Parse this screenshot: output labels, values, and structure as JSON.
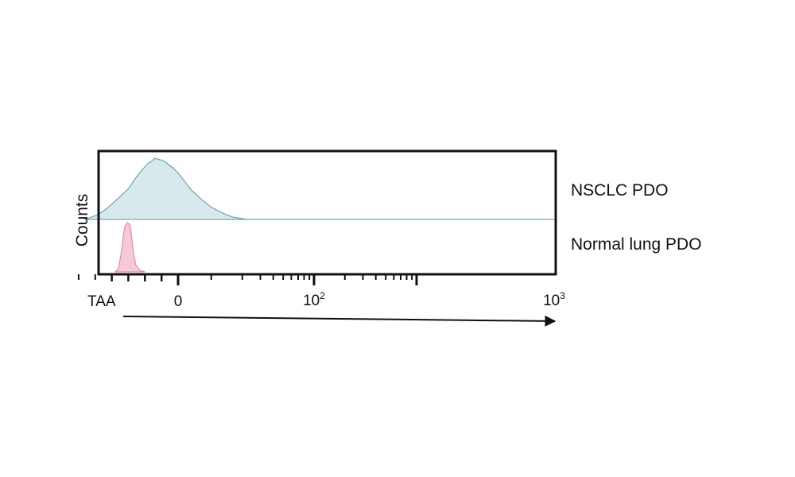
{
  "chart_data": {
    "type": "area",
    "title": "",
    "xlabel": "TAA",
    "ylabel": "Counts",
    "x_scale": "biexponential",
    "xlim": [
      -40,
      1000
    ],
    "x_ticks": [
      {
        "base": "0",
        "sup": "",
        "value": 0
      },
      {
        "base": "10",
        "sup": "2",
        "value": 100
      },
      {
        "base": "10",
        "sup": "3",
        "value": 1000
      }
    ],
    "series": [
      {
        "name": "NSCLC PDO",
        "color": "#d7e9ec",
        "line_color": "#4f9aa6",
        "points": [
          [
            -28,
            0
          ],
          [
            -24,
            0.08
          ],
          [
            -21,
            0.2
          ],
          [
            -18,
            0.35
          ],
          [
            -15,
            0.5
          ],
          [
            -13,
            0.66
          ],
          [
            -11,
            0.8
          ],
          [
            -9,
            0.92
          ],
          [
            -8,
            0.95
          ],
          [
            -7,
            1.0
          ],
          [
            -6,
            0.98
          ],
          [
            -5,
            0.97
          ],
          [
            -4,
            0.95
          ],
          [
            -3,
            0.9
          ],
          [
            -1.5,
            0.84
          ],
          [
            0,
            0.76
          ],
          [
            2,
            0.62
          ],
          [
            4,
            0.48
          ],
          [
            7,
            0.33
          ],
          [
            10,
            0.2
          ],
          [
            13,
            0.1
          ],
          [
            16,
            0.04
          ],
          [
            19,
            0.02
          ],
          [
            22,
            0
          ]
        ]
      },
      {
        "name": "Normal lung PDO",
        "color": "#f7c9d8",
        "line_color": "#e07a9c",
        "points": [
          [
            -19,
            0
          ],
          [
            -18,
            0.06
          ],
          [
            -17,
            0.45
          ],
          [
            -16.5,
            0.75
          ],
          [
            -16,
            0.93
          ],
          [
            -15.3,
            1.0
          ],
          [
            -14.5,
            0.96
          ],
          [
            -14,
            0.7
          ],
          [
            -13.5,
            0.4
          ],
          [
            -12.8,
            0.15
          ],
          [
            -11.5,
            0.03
          ],
          [
            -10,
            0
          ]
        ]
      }
    ],
    "grid": false,
    "legend": "right"
  }
}
